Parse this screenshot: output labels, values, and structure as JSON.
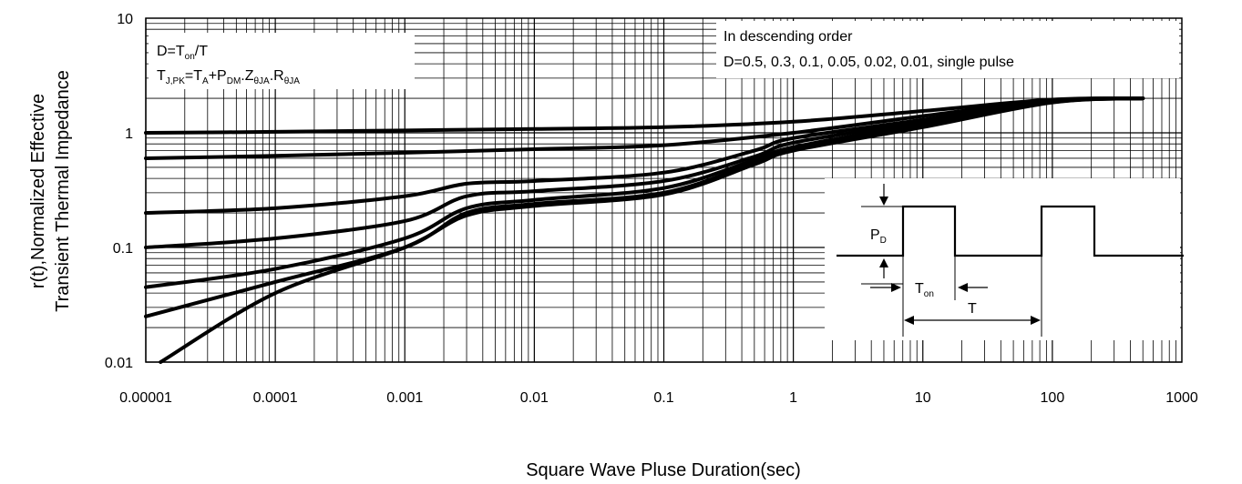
{
  "chart_data": {
    "type": "line",
    "xlabel": "Square Wave Pluse Duration(sec)",
    "ylabel_line1": "r(t),Normalized Effective",
    "ylabel_line2": "Transient Thermal Impedance",
    "x_scale": "log",
    "y_scale": "log",
    "xlim": [
      1e-05,
      1000
    ],
    "ylim": [
      0.01,
      10
    ],
    "x_tick_labels": [
      "0.00001",
      "0.0001",
      "0.001",
      "0.01",
      "0.1",
      "1",
      "10",
      "100",
      "1000"
    ],
    "y_tick_labels": [
      "10",
      "1",
      "0.1",
      "0.01"
    ],
    "grid": true,
    "annotation_formula": {
      "line1_main": "D=T",
      "line1_sub": "on",
      "line1_tail": "/T",
      "line2_parts": [
        {
          "text": "T",
          "sub": false
        },
        {
          "text": "J,PK",
          "sub": true
        },
        {
          "text": "=T",
          "sub": false
        },
        {
          "text": "A",
          "sub": true
        },
        {
          "text": "+P",
          "sub": false
        },
        {
          "text": "DM",
          "sub": true
        },
        {
          "text": ".Z",
          "sub": false
        },
        {
          "text": "θJA",
          "sub": true
        },
        {
          "text": ".R",
          "sub": false
        },
        {
          "text": "θJA",
          "sub": true
        }
      ]
    },
    "legend_note": {
      "line1": "In descending order",
      "line2": "D=0.5, 0.3, 0.1, 0.05, 0.02, 0.01, single pulse"
    },
    "inset_labels": {
      "pd_main": "P",
      "pd_sub": "D",
      "ton_main": "T",
      "ton_sub": "on",
      "t_label": "T"
    },
    "series": [
      {
        "x": [
          1e-05,
          0.0001,
          0.001,
          0.01,
          0.1,
          1,
          10,
          100,
          500
        ],
        "values": [
          1.0,
          1.02,
          1.05,
          1.08,
          1.12,
          1.25,
          1.55,
          1.95,
          2.0
        ]
      },
      {
        "x": [
          1e-05,
          0.0001,
          0.001,
          0.01,
          0.1,
          1,
          10,
          100,
          500
        ],
        "values": [
          0.6,
          0.63,
          0.67,
          0.72,
          0.78,
          1.0,
          1.4,
          1.92,
          2.0
        ]
      },
      {
        "x": [
          1e-05,
          0.0001,
          0.001,
          0.003,
          0.01,
          0.1,
          0.5,
          1,
          10,
          100,
          500
        ],
        "values": [
          0.2,
          0.22,
          0.28,
          0.36,
          0.38,
          0.45,
          0.7,
          0.9,
          1.3,
          1.9,
          2.0
        ]
      },
      {
        "x": [
          1e-05,
          0.0001,
          0.001,
          0.003,
          0.01,
          0.1,
          0.5,
          1,
          10,
          100,
          500
        ],
        "values": [
          0.1,
          0.12,
          0.17,
          0.28,
          0.31,
          0.38,
          0.62,
          0.82,
          1.25,
          1.88,
          2.0
        ]
      },
      {
        "x": [
          1e-05,
          0.0001,
          0.001,
          0.003,
          0.01,
          0.1,
          0.5,
          1,
          10,
          100,
          500
        ],
        "values": [
          0.045,
          0.065,
          0.12,
          0.22,
          0.26,
          0.33,
          0.58,
          0.75,
          1.2,
          1.86,
          2.0
        ]
      },
      {
        "x": [
          1e-05,
          0.0001,
          0.001,
          0.003,
          0.01,
          0.1,
          0.5,
          1,
          10,
          100,
          500
        ],
        "values": [
          0.025,
          0.05,
          0.1,
          0.2,
          0.24,
          0.3,
          0.55,
          0.72,
          1.15,
          1.85,
          2.0
        ]
      },
      {
        "x": [
          1.3e-05,
          0.0001,
          0.001,
          0.003,
          0.01,
          0.1,
          0.5,
          1,
          10,
          100,
          500
        ],
        "values": [
          0.01,
          0.04,
          0.1,
          0.19,
          0.23,
          0.29,
          0.53,
          0.7,
          1.12,
          1.84,
          2.0
        ]
      }
    ]
  }
}
